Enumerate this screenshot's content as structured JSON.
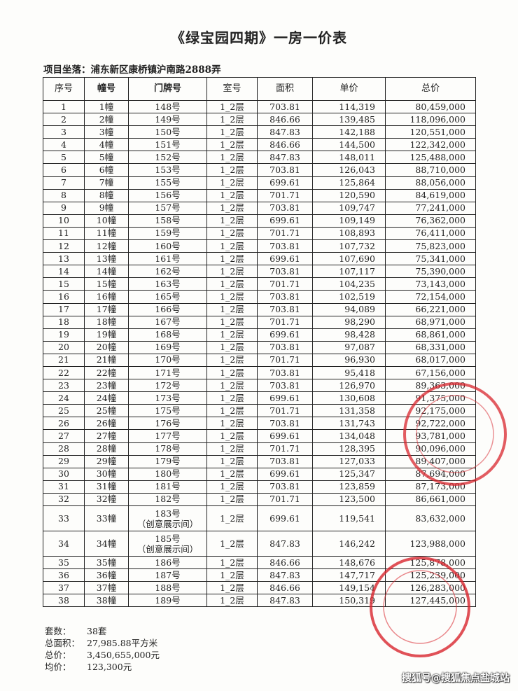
{
  "title": "《绿宝园四期》一房一价表",
  "address": "项目坐落：浦东新区康桥镇沪南路2888弄",
  "table": {
    "headers": [
      "序号",
      "幢号",
      "门牌号",
      "室号",
      "面积",
      "单价",
      "总价"
    ],
    "rows": [
      [
        "1",
        "1幢",
        "148号",
        "1_2层",
        "703.81",
        "114,319",
        "80,459,000"
      ],
      [
        "2",
        "2幢",
        "149号",
        "1_2层",
        "846.66",
        "139,485",
        "118,096,000"
      ],
      [
        "3",
        "3幢",
        "150号",
        "1_2层",
        "847.83",
        "142,188",
        "120,551,000"
      ],
      [
        "4",
        "4幢",
        "151号",
        "1_2层",
        "846.66",
        "144,500",
        "122,342,000"
      ],
      [
        "5",
        "5幢",
        "152号",
        "1_2层",
        "847.83",
        "148,011",
        "125,488,000"
      ],
      [
        "6",
        "6幢",
        "153号",
        "1_2层",
        "703.81",
        "126,043",
        "88,710,000"
      ],
      [
        "7",
        "7幢",
        "155号",
        "1_2层",
        "699.61",
        "125,864",
        "88,056,000"
      ],
      [
        "8",
        "8幢",
        "156号",
        "1_2层",
        "701.71",
        "120,590",
        "84,619,000"
      ],
      [
        "9",
        "9幢",
        "157号",
        "1_2层",
        "703.81",
        "109,747",
        "77,241,000"
      ],
      [
        "10",
        "10幢",
        "158号",
        "1_2层",
        "699.61",
        "109,149",
        "76,362,000"
      ],
      [
        "11",
        "11幢",
        "159号",
        "1_2层",
        "701.71",
        "108,893",
        "76,411,000"
      ],
      [
        "12",
        "12幢",
        "160号",
        "1_2层",
        "703.81",
        "107,732",
        "75,823,000"
      ],
      [
        "13",
        "13幢",
        "161号",
        "1_2层",
        "699.61",
        "107,690",
        "75,341,000"
      ],
      [
        "14",
        "14幢",
        "162号",
        "1_2层",
        "703.81",
        "107,117",
        "75,390,000"
      ],
      [
        "15",
        "15幢",
        "163号",
        "1_2层",
        "701.71",
        "104,235",
        "73,143,000"
      ],
      [
        "16",
        "16幢",
        "165号",
        "1_2层",
        "703.81",
        "102,519",
        "72,154,000"
      ],
      [
        "17",
        "17幢",
        "166号",
        "1_2层",
        "703.81",
        "94,089",
        "66,221,000"
      ],
      [
        "18",
        "18幢",
        "167号",
        "1_2层",
        "701.71",
        "98,290",
        "68,971,000"
      ],
      [
        "19",
        "19幢",
        "168号",
        "1_2层",
        "699.61",
        "98,428",
        "68,861,000"
      ],
      [
        "20",
        "20幢",
        "169号",
        "1_2层",
        "703.81",
        "97,087",
        "68,331,000"
      ],
      [
        "21",
        "21幢",
        "170号",
        "1_2层",
        "701.71",
        "96,930",
        "68,017,000"
      ],
      [
        "22",
        "22幢",
        "171号",
        "1_2层",
        "703.81",
        "95,418",
        "67,156,000"
      ],
      [
        "23",
        "23幢",
        "172号",
        "1_2层",
        "703.81",
        "126,970",
        "89,363,000"
      ],
      [
        "24",
        "24幢",
        "173号",
        "1_2层",
        "699.61",
        "130,608",
        "91,375,000"
      ],
      [
        "25",
        "25幢",
        "175号",
        "1_2层",
        "701.71",
        "131,358",
        "92,175,000"
      ],
      [
        "26",
        "26幢",
        "176号",
        "1_2层",
        "703.81",
        "131,743",
        "92,722,000"
      ],
      [
        "27",
        "27幢",
        "177号",
        "1_2层",
        "699.61",
        "134,048",
        "93,781,000"
      ],
      [
        "28",
        "28幢",
        "178号",
        "1_2层",
        "701.71",
        "128,395",
        "90,096,000"
      ],
      [
        "29",
        "29幢",
        "179号",
        "1_2层",
        "703.81",
        "127,033",
        "89,407,000"
      ],
      [
        "30",
        "30幢",
        "180号",
        "1_2层",
        "699.61",
        "125,347",
        "87,694,000"
      ],
      [
        "31",
        "31幢",
        "181号",
        "1_2层",
        "703.81",
        "123,859",
        "87,173,000"
      ],
      [
        "32",
        "32幢",
        "182号",
        "1_2层",
        "701.71",
        "123,500",
        "86,661,000"
      ],
      [
        "33",
        "33幢",
        "183号\n（创意展示间）",
        "1_2层",
        "699.61",
        "119,541",
        "83,632,000"
      ],
      [
        "34",
        "34幢",
        "185号\n（创意展示间）",
        "1_2层",
        "847.83",
        "146,242",
        "123,988,000"
      ],
      [
        "35",
        "35幢",
        "186号",
        "1_2层",
        "846.66",
        "148,676",
        "125,878,000"
      ],
      [
        "36",
        "36幢",
        "187号",
        "1_2层",
        "847.83",
        "147,717",
        "125,239,000"
      ],
      [
        "37",
        "37幢",
        "188号",
        "1_2层",
        "846.66",
        "149,154",
        "126,283,000"
      ],
      [
        "38",
        "38幢",
        "189号",
        "1_2层",
        "847.83",
        "150,319",
        "127,445,000"
      ]
    ]
  },
  "summary": [
    {
      "label": "套数：",
      "value": "38套"
    },
    {
      "label": "总面积：",
      "value": "27,985.88平方米"
    },
    {
      "label": "总价：",
      "value": "3,450,655,000元"
    },
    {
      "label": "均价：",
      "value": "123,300元"
    }
  ],
  "watermark": "搜狐号@搜狐焦点盐城站",
  "colors": {
    "stamp": "#d8262e",
    "text": "#222222"
  }
}
